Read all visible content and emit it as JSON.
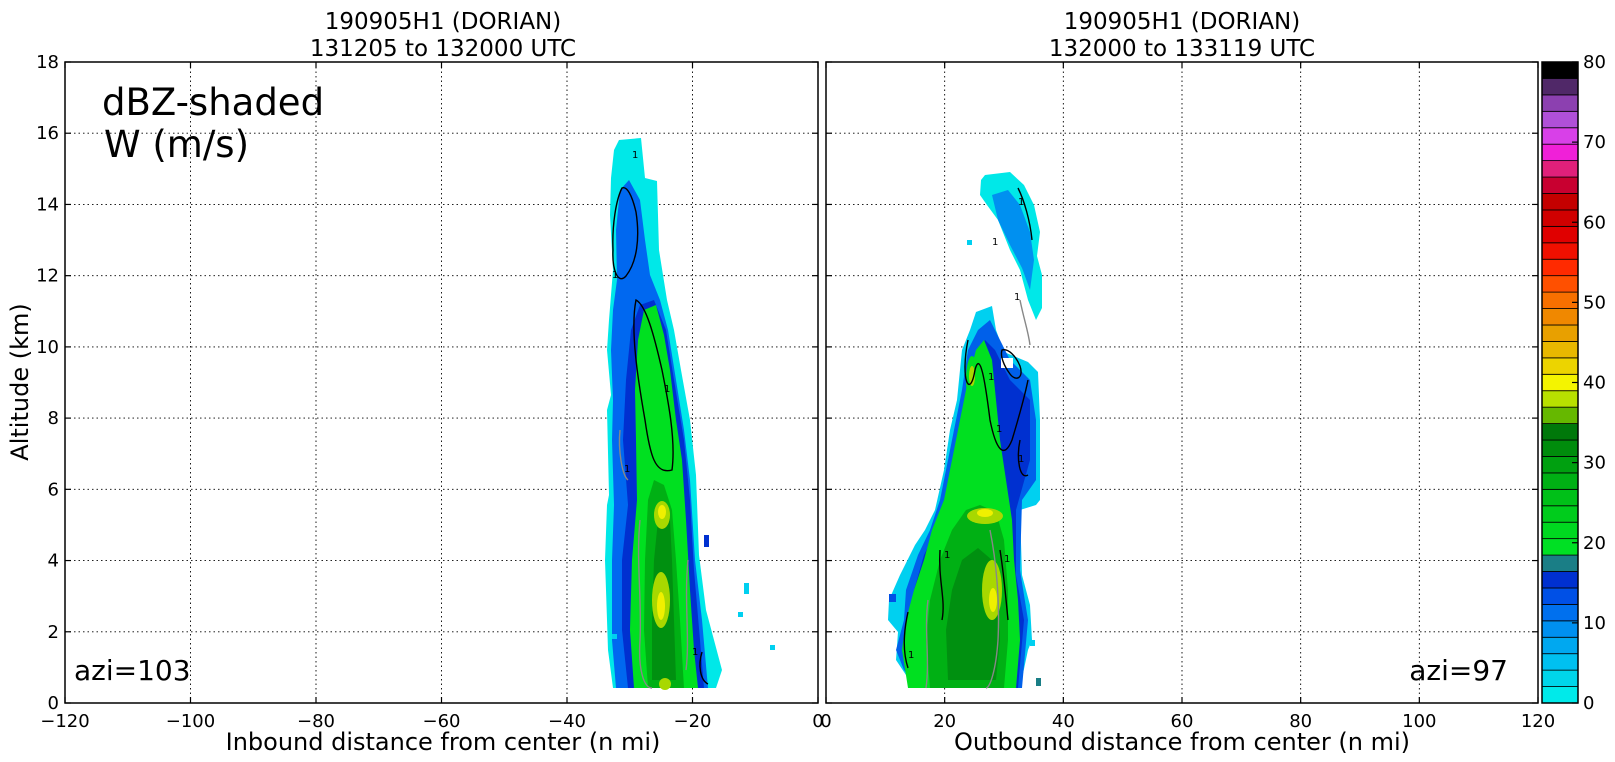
{
  "y_axis_label": "Altitude (km)",
  "annotation": {
    "line1": "dBZ-shaded",
    "line2": "W (m/s)"
  },
  "panels": [
    {
      "title_line1": "190905H1 (DORIAN)",
      "title_line2": "131205 to 132000 UTC",
      "xlabel": "Inbound distance from center (n mi)",
      "azimuth_label": "azi=103",
      "x_ticks": [
        "−120",
        "−100",
        "−80",
        "−60",
        "−40",
        "−20",
        "0"
      ],
      "y_ticks": [
        "0",
        "2",
        "4",
        "6",
        "8",
        "10",
        "12",
        "14",
        "16",
        "18"
      ]
    },
    {
      "title_line1": "190905H1 (DORIAN)",
      "title_line2": "132000 to 133119 UTC",
      "xlabel": "Outbound distance from center (n mi)",
      "azimuth_label": "azi=97",
      "x_ticks": [
        "0",
        "20",
        "40",
        "60",
        "80",
        "100",
        "120"
      ]
    }
  ],
  "colorbar": {
    "tick_labels": [
      "0",
      "10",
      "20",
      "30",
      "40",
      "50",
      "60",
      "70",
      "80"
    ],
    "colors": [
      "#00eaea",
      "#00d6ea",
      "#00c0f0",
      "#00a8f0",
      "#0090f0",
      "#0070ee",
      "#0050e6",
      "#0030d0",
      "#1a7e86",
      "#00e024",
      "#00d820",
      "#00cc1c",
      "#00c018",
      "#00b014",
      "#00a010",
      "#008c0c",
      "#00780a",
      "#66b800",
      "#b8e000",
      "#f4f400",
      "#ecd400",
      "#e8b800",
      "#e8a000",
      "#f08800",
      "#f87000",
      "#ff5000",
      "#ff2a00",
      "#f01000",
      "#e00000",
      "#d00000",
      "#c40000",
      "#c80030",
      "#e0207a",
      "#f020d8",
      "#d840e8",
      "#b050d8",
      "#8c40b0",
      "#502868",
      "#000000"
    ]
  },
  "chart_data": [
    {
      "type": "heatmap",
      "title": "190905H1 (DORIAN)\n131205 to 132000 UTC",
      "xlabel": "Inbound distance from center (n mi)",
      "ylabel": "Altitude (km)",
      "xlim": [
        -120,
        0
      ],
      "ylim": [
        0,
        18
      ],
      "grid": true,
      "shaded_variable": "dBZ",
      "contour_variable": "W (m/s)",
      "echo_region": {
        "x_range": [
          -35,
          -15
        ],
        "top_km": 15.8,
        "max_dBZ_approx": 38,
        "max_dBZ_altitude_km": [
          2.5,
          5.5
        ]
      },
      "contours": [
        {
          "level": 1
        },
        {
          "level": -1
        }
      ]
    },
    {
      "type": "heatmap",
      "title": "190905H1 (DORIAN)\n132000 to 133119 UTC",
      "xlabel": "Outbound distance from center (n mi)",
      "ylabel": "Altitude (km)",
      "xlim": [
        0,
        120
      ],
      "ylim": [
        0,
        18
      ],
      "grid": true,
      "shaded_variable": "dBZ",
      "contour_variable": "W (m/s)",
      "echo_region": {
        "x_range": [
          11,
          36
        ],
        "top_km": 14.9,
        "max_dBZ_approx": 36,
        "max_dBZ_altitude_km": [
          2.5,
          5.5
        ]
      },
      "contours": [
        {
          "level": 1
        },
        {
          "level": -1
        }
      ]
    }
  ]
}
